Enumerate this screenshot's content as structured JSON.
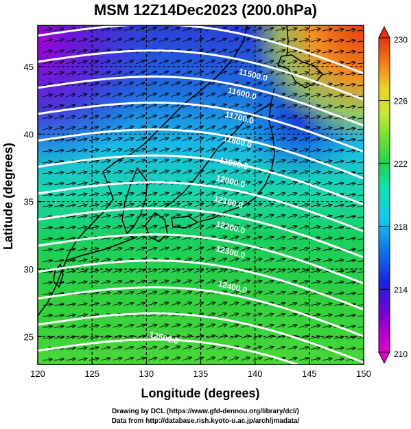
{
  "title": "MSM 12Z14Dec2023 (200.0hPa)",
  "axes": {
    "xlabel": "Longitude (degrees)",
    "ylabel": "Latitude  (degrees)",
    "x_ticks": [
      "120",
      "125",
      "130",
      "135",
      "140",
      "145",
      "150"
    ],
    "y_ticks": [
      "25",
      "30",
      "35",
      "40",
      "45"
    ]
  },
  "colorbar": {
    "min_label": "210",
    "max_label": "230",
    "tick_labels": [
      "214",
      "218",
      "222",
      "226"
    ]
  },
  "contour_labels": [
    "11500.0",
    "11600.0",
    "11700.0",
    "11800.0",
    "11900.0",
    "12000.0",
    "12100.0",
    "12200.0",
    "12300.0",
    "12400.0",
    "12500.0"
  ],
  "credits": {
    "line1": "Drawing by DCL (https://www.gfd-dennou.org/library/dcl/)",
    "line2": "Data from http://database.rish.kyoto-u.ac.jp/arch/jmadata/"
  }
}
